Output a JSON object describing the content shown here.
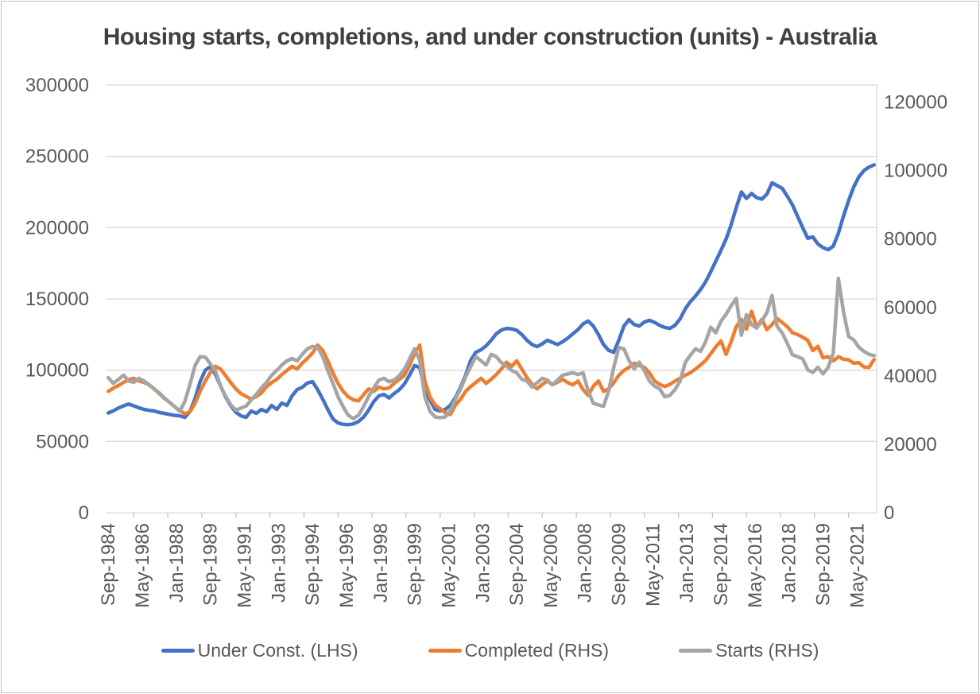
{
  "colors": {
    "background": "#FFFFFF",
    "frame_border": "#BFBFBF",
    "gridline": "#D9D9D9",
    "axis_line": "#D9D9D9",
    "tick_mark": "#BFBFBF",
    "axis_text": "#595959",
    "title_text": "#404040",
    "series_blue": "#4472C4",
    "series_orange": "#ED7D31",
    "series_gray": "#A5A5A5"
  },
  "chart_data": {
    "type": "line",
    "title": "Housing starts, completions, and under construction (units) - Australia",
    "x_frequency": "quarterly, first point Sep-1984",
    "x_tick_labels": [
      "Sep-1984",
      "May-1986",
      "Jan-1988",
      "Sep-1989",
      "May-1991",
      "Jan-1993",
      "Sep-1994",
      "May-1996",
      "Jan-1998",
      "Sep-1999",
      "May-2001",
      "Jan-2003",
      "Sep-2004",
      "May-2006",
      "Jan-2008",
      "Sep-2009",
      "May-2011",
      "Jan-2013",
      "Sep-2014",
      "May-2016",
      "Jan-2018",
      "Sep-2019",
      "May-2021"
    ],
    "x_tick_indices": [
      0,
      6.67,
      13.33,
      20,
      26.67,
      33.33,
      40,
      46.67,
      53.33,
      60,
      66.67,
      73.33,
      80,
      86.67,
      93.33,
      100,
      106.67,
      113.33,
      120,
      126.67,
      133.33,
      140,
      146.67
    ],
    "axes": {
      "left": {
        "min": 0,
        "max": 300000,
        "tick_interval": 50000,
        "tick_labels": [
          "300000",
          "250000",
          "200000",
          "150000",
          "100000",
          "50000",
          "0"
        ]
      },
      "right": {
        "min": 0,
        "max": 125000,
        "tick_interval": 20000,
        "tick_labels": [
          "120000",
          "100000",
          "80000",
          "60000",
          "40000",
          "20000",
          "0"
        ]
      }
    },
    "grid": "horizontal only",
    "legend_position": "bottom",
    "series": [
      {
        "name": "Under Const. (LHS)",
        "axis": "left",
        "color": "#4472C4",
        "values": [
          70000,
          71500,
          73500,
          75000,
          76300,
          75000,
          73600,
          72500,
          71800,
          71400,
          70300,
          69700,
          69000,
          68300,
          68000,
          66900,
          71000,
          80000,
          92000,
          100000,
          102500,
          97000,
          89000,
          81000,
          75000,
          70500,
          68000,
          66900,
          71400,
          69700,
          72500,
          70800,
          75300,
          72500,
          76900,
          75300,
          82000,
          86400,
          88000,
          91000,
          92000,
          86400,
          79700,
          72500,
          65800,
          63000,
          62000,
          61800,
          62300,
          64000,
          67000,
          72000,
          78000,
          82000,
          83000,
          80500,
          83600,
          86400,
          90300,
          96500,
          103200,
          101800,
          86400,
          79200,
          72500,
          71400,
          72500,
          75300,
          80800,
          88100,
          96500,
          107000,
          112600,
          114300,
          117100,
          121000,
          125500,
          128200,
          129300,
          129000,
          128000,
          125000,
          121000,
          118000,
          116500,
          118500,
          121000,
          119500,
          118000,
          120000,
          122500,
          125500,
          128500,
          132500,
          134500,
          131000,
          125000,
          118000,
          114000,
          112600,
          121000,
          131000,
          135500,
          132000,
          131000,
          133800,
          135000,
          133500,
          131500,
          130000,
          129300,
          131500,
          136000,
          143000,
          148000,
          152000,
          156500,
          162000,
          169000,
          176500,
          184000,
          192000,
          202000,
          214000,
          225000,
          220500,
          224000,
          221000,
          220000,
          223500,
          231400,
          229500,
          227500,
          222000,
          216000,
          208000,
          200000,
          192500,
          193500,
          188500,
          186000,
          184500,
          187000,
          196000,
          208000,
          219000,
          228500,
          235500,
          240000,
          242500,
          244000
        ]
      },
      {
        "name": "Completed (RHS)",
        "axis": "right",
        "color": "#ED7D31",
        "values": [
          35500,
          36400,
          37200,
          38100,
          38900,
          39300,
          38500,
          38100,
          37400,
          36200,
          34800,
          33400,
          32300,
          31000,
          29900,
          28900,
          29500,
          32000,
          35500,
          38500,
          41000,
          42800,
          42000,
          40000,
          38000,
          36200,
          34800,
          34000,
          33200,
          34000,
          35000,
          36900,
          38000,
          39000,
          40400,
          41600,
          42800,
          42000,
          43700,
          45100,
          46700,
          49000,
          47500,
          44400,
          40900,
          37800,
          35500,
          33900,
          33000,
          32700,
          34500,
          36200,
          35500,
          36700,
          36200,
          36500,
          37800,
          39000,
          40200,
          43000,
          46500,
          49000,
          38500,
          33900,
          31500,
          30400,
          29200,
          28700,
          31500,
          33200,
          35500,
          36900,
          38100,
          39300,
          37800,
          39000,
          40400,
          42000,
          44000,
          42800,
          44400,
          42000,
          39500,
          37500,
          36200,
          37500,
          38500,
          37400,
          38200,
          39000,
          38000,
          37400,
          38500,
          36000,
          34300,
          37000,
          38500,
          35500,
          36200,
          38000,
          40200,
          41600,
          42500,
          43700,
          43000,
          42500,
          40900,
          38500,
          37500,
          36900,
          37500,
          38500,
          39300,
          40200,
          40900,
          42000,
          43200,
          44500,
          46500,
          48500,
          50200,
          46300,
          50000,
          54400,
          56500,
          53700,
          58900,
          54200,
          56500,
          53500,
          55000,
          56800,
          55600,
          54400,
          52600,
          52100,
          51300,
          50400,
          47400,
          48600,
          45300,
          45600,
          44400,
          45600,
          44900,
          44700,
          43700,
          43900,
          42600,
          42500,
          44800
        ]
      },
      {
        "name": "Starts (RHS)",
        "axis": "right",
        "color": "#A5A5A5",
        "values": [
          39500,
          37800,
          39000,
          40200,
          38500,
          38100,
          39300,
          38500,
          37400,
          36200,
          35000,
          33500,
          32300,
          31000,
          29700,
          32500,
          37500,
          43000,
          45600,
          45500,
          43500,
          41500,
          37000,
          34000,
          31500,
          30000,
          30600,
          31200,
          33000,
          34600,
          36500,
          38100,
          40200,
          41600,
          43200,
          44400,
          45100,
          44400,
          46300,
          47900,
          48600,
          48400,
          45600,
          41600,
          37800,
          33900,
          31000,
          28500,
          27500,
          28500,
          31000,
          34000,
          36500,
          38800,
          39300,
          38300,
          38800,
          40000,
          42000,
          44900,
          47900,
          44500,
          33900,
          29700,
          28000,
          27800,
          28000,
          29900,
          33200,
          36200,
          39700,
          42800,
          45600,
          44400,
          43200,
          46300,
          45600,
          43900,
          42800,
          41600,
          40900,
          39000,
          38500,
          36700,
          38000,
          39300,
          38800,
          37400,
          38800,
          40200,
          40600,
          40900,
          40400,
          40900,
          35500,
          32000,
          31500,
          31100,
          35500,
          42500,
          48300,
          47900,
          44500,
          42000,
          44000,
          41500,
          38500,
          37000,
          36200,
          33900,
          34300,
          36000,
          38500,
          43900,
          46000,
          47900,
          47200,
          50000,
          54200,
          52600,
          56000,
          58000,
          60500,
          62600,
          51900,
          57900,
          55000,
          54000,
          56000,
          58500,
          63500,
          54500,
          52500,
          49500,
          46200,
          45600,
          45000,
          41800,
          41000,
          42500,
          40600,
          42500,
          46700,
          68500,
          58900,
          51500,
          50500,
          48400,
          47200,
          46300,
          45900
        ]
      }
    ]
  }
}
